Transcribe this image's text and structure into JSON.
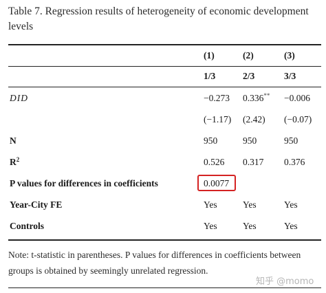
{
  "caption": "Table 7. Regression results of heterogeneity of economic development levels",
  "columns": [
    {
      "number": "(1)",
      "group": "1/3"
    },
    {
      "number": "(2)",
      "group": "2/3"
    },
    {
      "number": "(3)",
      "group": "3/3"
    }
  ],
  "rows": {
    "did": {
      "label": "DID",
      "coef": [
        "−0.273",
        "0.336",
        "−0.006"
      ],
      "stars": [
        "",
        "**",
        ""
      ],
      "tstat": [
        "(−1.17)",
        "(2.42)",
        "(−0.07)"
      ]
    },
    "n": {
      "label": "N",
      "values": [
        "950",
        "950",
        "950"
      ]
    },
    "r2": {
      "label": "R",
      "sup": "2",
      "values": [
        "0.526",
        "0.317",
        "0.376"
      ]
    },
    "pvalue": {
      "label": "P values for differences in coefficients",
      "value": "0.0077"
    },
    "fe": {
      "label": "Year-City FE",
      "values": [
        "Yes",
        "Yes",
        "Yes"
      ]
    },
    "controls": {
      "label": "Controls",
      "values": [
        "Yes",
        "Yes",
        "Yes"
      ]
    }
  },
  "note": "Note: t-statistic in parentheses. P values for differences in coefficients between groups is obtained by seemingly unrelated regression.",
  "watermark": "知乎 @momo",
  "highlight_color": "#d42222"
}
